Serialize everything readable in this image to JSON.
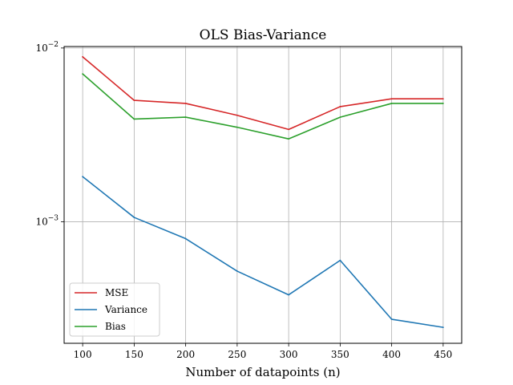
{
  "chart_data": {
    "type": "line",
    "title": "OLS Bias-Variance",
    "xlabel": "Number of datapoints (n)",
    "ylabel": "",
    "x": [
      100,
      150,
      200,
      250,
      300,
      350,
      400,
      450
    ],
    "xticks": [
      "100",
      "150",
      "200",
      "250",
      "300",
      "350",
      "400",
      "450"
    ],
    "xlim": [
      82,
      468
    ],
    "yscale": "log",
    "ylim": [
      0.0002,
      0.0102
    ],
    "yticks": [
      {
        "value": 0.01,
        "base": "10",
        "exp": "−2"
      },
      {
        "value": 0.001,
        "base": "10",
        "exp": "−3"
      }
    ],
    "grid": true,
    "legend_loc": "lower-left",
    "series": [
      {
        "name": "MSE",
        "color": "#d62728",
        "values": [
          0.0089,
          0.005,
          0.0048,
          0.0041,
          0.0034,
          0.0046,
          0.0051,
          0.0051
        ]
      },
      {
        "name": "Variance",
        "color": "#1f77b4",
        "values": [
          0.00182,
          0.00106,
          0.0008,
          0.00052,
          0.00038,
          0.0006,
          0.000275,
          0.000247
        ]
      },
      {
        "name": "Bias",
        "color": "#2ca02c",
        "values": [
          0.0071,
          0.0039,
          0.004,
          0.0035,
          0.003,
          0.004,
          0.0048,
          0.0048
        ]
      }
    ]
  }
}
